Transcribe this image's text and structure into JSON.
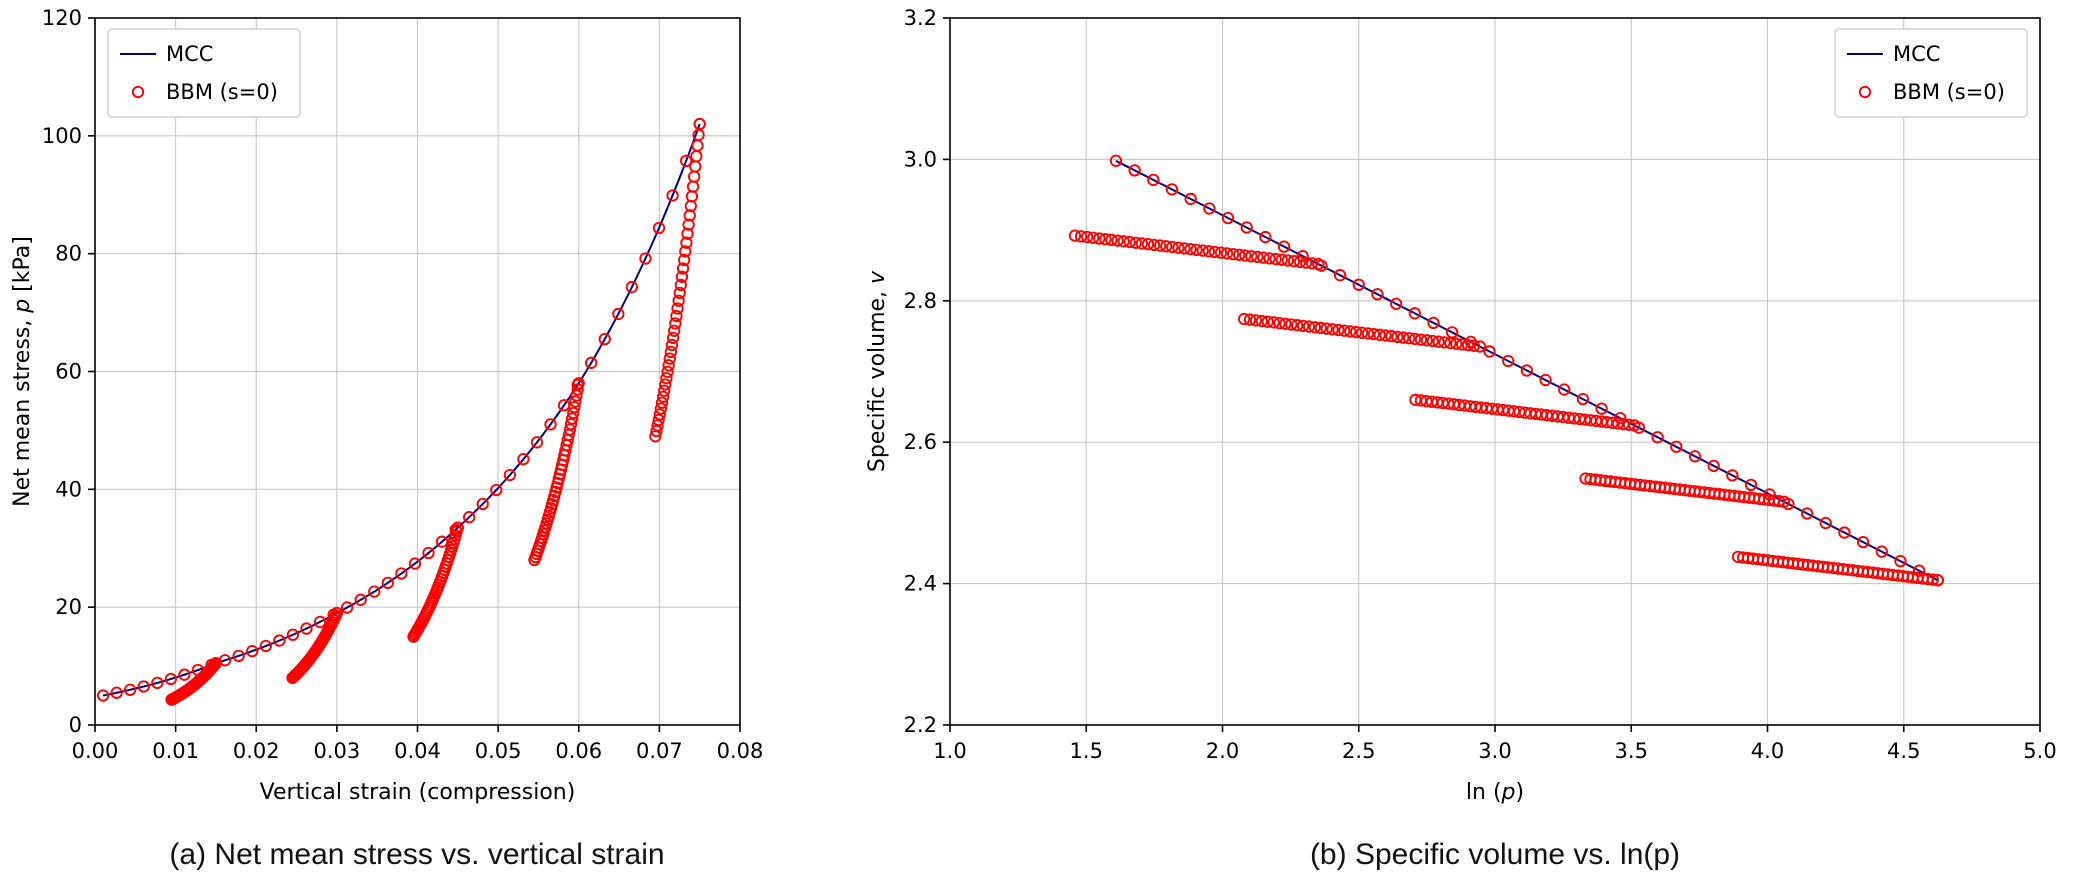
{
  "captions": {
    "a": "(a) Net mean stress vs. vertical strain",
    "b": "(b) Specific volume vs. ln(p)"
  },
  "colors": {
    "mcc_line": "#000080",
    "bbm_marker": "#ff0000",
    "grid": "#c8c8c8",
    "axis": "#000000",
    "legend_border": "#cccccc",
    "text": "#000000",
    "background": "#ffffff"
  },
  "legend_labels": {
    "mcc": "MCC",
    "bbm": "BBM (s=0)"
  },
  "chart_data": [
    {
      "id": "net-mean-stress-vs-vertical-strain",
      "type": "line+scatter",
      "xlabel_segments": [
        {
          "text": "Vertical strain (compression)",
          "italic": false
        }
      ],
      "ylabel_segments": [
        {
          "text": "Net mean stress, ",
          "italic": false
        },
        {
          "text": "p",
          "italic": true
        },
        {
          "text": " [kPa]",
          "italic": false
        }
      ],
      "xlim": [
        0.0,
        0.08
      ],
      "ylim": [
        0,
        120
      ],
      "xticks": [
        0.0,
        0.01,
        0.02,
        0.03,
        0.04,
        0.05,
        0.06,
        0.07,
        0.08
      ],
      "xtick_labels": [
        "0.00",
        "0.01",
        "0.02",
        "0.03",
        "0.04",
        "0.05",
        "0.06",
        "0.07",
        "0.08"
      ],
      "yticks": [
        0,
        20,
        40,
        60,
        80,
        100,
        120
      ],
      "ytick_labels": [
        "0",
        "20",
        "40",
        "60",
        "80",
        "100",
        "120"
      ],
      "grid": true,
      "legend": {
        "position": "upper-left",
        "items": [
          {
            "sample": "line",
            "label": "MCC"
          },
          {
            "sample": "circle",
            "label": "BBM (s=0)"
          }
        ]
      },
      "series_model": {
        "kind": "strain_stress",
        "loading_anchors": {
          "strain": [
            0.001,
            0.015,
            0.03,
            0.045,
            0.06,
            0.075
          ],
          "p": [
            5,
            10.5,
            19,
            33.5,
            58,
            102
          ]
        },
        "n_loading_markers": 45,
        "unload_branches": {
          "from_anchor_index": [
            1,
            2,
            3,
            4,
            5
          ],
          "p_bottom": [
            4.3,
            8,
            15,
            28,
            49
          ],
          "strain_decrease": 0.0055,
          "n_markers": 40
        }
      }
    },
    {
      "id": "specific-volume-vs-lnp",
      "type": "line+scatter",
      "xlabel_segments": [
        {
          "text": "ln (",
          "italic": false
        },
        {
          "text": "p",
          "italic": true
        },
        {
          "text": ")",
          "italic": false
        }
      ],
      "ylabel_segments": [
        {
          "text": "Specific volume, ",
          "italic": false
        },
        {
          "text": "v",
          "italic": true
        }
      ],
      "xlim": [
        1.0,
        5.0
      ],
      "ylim": [
        2.2,
        3.2
      ],
      "xticks": [
        1.0,
        1.5,
        2.0,
        2.5,
        3.0,
        3.5,
        4.0,
        4.5,
        5.0
      ],
      "xtick_labels": [
        "1.0",
        "1.5",
        "2.0",
        "2.5",
        "3.0",
        "3.5",
        "4.0",
        "4.5",
        "5.0"
      ],
      "yticks": [
        2.2,
        2.4,
        2.6,
        2.8,
        3.0,
        3.2
      ],
      "ytick_labels": [
        "2.2",
        "2.4",
        "2.6",
        "2.8",
        "3.0",
        "3.2"
      ],
      "grid": true,
      "legend": {
        "position": "upper-right",
        "items": [
          {
            "sample": "line",
            "label": "MCC"
          },
          {
            "sample": "circle",
            "label": "BBM (s=0)"
          }
        ]
      },
      "series_model": {
        "kind": "v_lnp",
        "ncl": {
          "v_intercept": 3.3145,
          "lambda": 0.1967,
          "lnp_start": 1.609,
          "lnp_end": 4.625
        },
        "kappa": 0.045,
        "n_ncl_markers": 45,
        "unload_branches": {
          "p_top": [
            10.5,
            19,
            33.5,
            58,
            102
          ],
          "p_bottom": [
            4.3,
            8,
            15,
            28,
            49
          ],
          "n_markers": 40
        }
      }
    }
  ]
}
